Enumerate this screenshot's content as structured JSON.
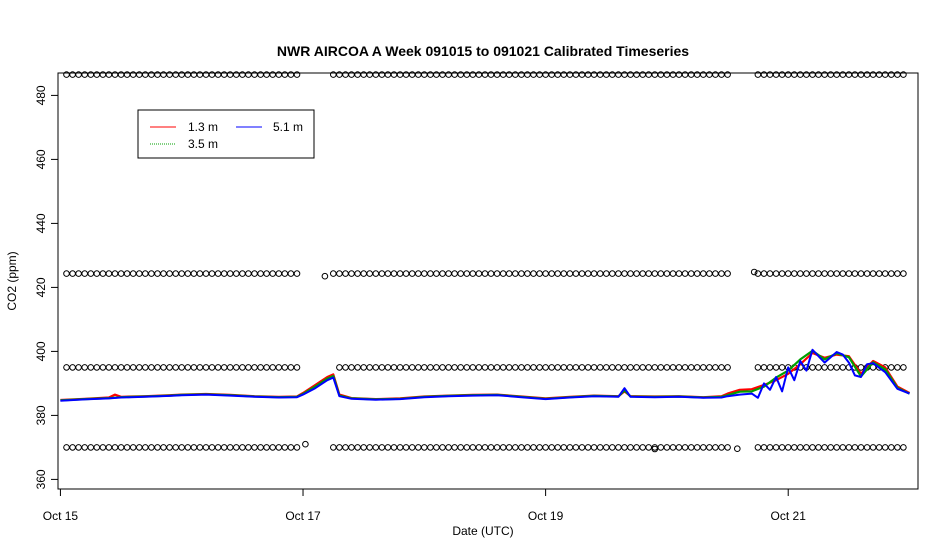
{
  "chart_data": {
    "type": "line",
    "title": "NWR AIRCOA A  Week 091015 to 091021  Calibrated Timeseries",
    "xlabel": "Date (UTC)",
    "ylabel": "CO2 (ppm)",
    "xlim": [
      -0.02,
      7.07
    ],
    "ylim": [
      357,
      487
    ],
    "x_ticks": [
      {
        "value": 0,
        "label": "Oct 15"
      },
      {
        "value": 2,
        "label": "Oct 17"
      },
      {
        "value": 4,
        "label": "Oct 19"
      },
      {
        "value": 6,
        "label": "Oct 21"
      }
    ],
    "y_ticks": [
      360,
      380,
      400,
      420,
      440,
      460,
      480
    ],
    "legend": {
      "position": "top-left",
      "entries": [
        {
          "label": "1.3 m",
          "color": "#ff0000"
        },
        {
          "label": "5.1 m",
          "color": "#0000ff"
        },
        {
          "label": "3.5 m",
          "color": "#00a000"
        }
      ]
    },
    "series": [
      {
        "name": "1.3 m",
        "color": "#ff0000",
        "x": [
          0.0,
          0.2,
          0.4,
          0.45,
          0.5,
          0.7,
          0.9,
          1.0,
          1.2,
          1.4,
          1.6,
          1.8,
          1.95,
          2.0,
          2.1,
          2.2,
          2.25,
          2.3,
          2.4,
          2.6,
          2.8,
          3.0,
          3.2,
          3.4,
          3.6,
          3.8,
          4.0,
          4.2,
          4.4,
          4.6,
          4.65,
          4.7,
          4.9,
          5.1,
          5.3,
          5.45,
          5.5,
          5.6,
          5.7,
          5.8,
          5.9,
          6.0,
          6.1,
          6.2,
          6.3,
          6.4,
          6.5,
          6.6,
          6.7,
          6.8,
          6.9,
          7.0
        ],
        "y": [
          384.8,
          385.2,
          385.6,
          386.5,
          385.8,
          386.0,
          386.3,
          386.5,
          386.7,
          386.4,
          386.0,
          385.8,
          385.9,
          387.0,
          389.5,
          392.0,
          392.8,
          386.5,
          385.4,
          385.1,
          385.3,
          385.9,
          386.2,
          386.4,
          386.5,
          385.9,
          385.3,
          385.8,
          386.2,
          386.0,
          387.5,
          386.0,
          385.9,
          386.0,
          385.7,
          386.0,
          386.8,
          388.0,
          388.2,
          389.5,
          391.0,
          393.0,
          396.0,
          399.5,
          398.0,
          399.0,
          398.5,
          393.0,
          397.0,
          395.0,
          389.0,
          387.0
        ]
      },
      {
        "name": "3.5 m",
        "color": "#00a000",
        "x": [
          0.0,
          0.2,
          0.4,
          0.5,
          0.7,
          0.9,
          1.0,
          1.2,
          1.4,
          1.6,
          1.8,
          1.95,
          2.0,
          2.1,
          2.2,
          2.25,
          2.3,
          2.4,
          2.6,
          2.8,
          3.0,
          3.2,
          3.4,
          3.6,
          3.8,
          4.0,
          4.2,
          4.4,
          4.6,
          4.65,
          4.7,
          4.9,
          5.1,
          5.3,
          5.45,
          5.5,
          5.6,
          5.7,
          5.8,
          5.9,
          6.0,
          6.1,
          6.2,
          6.3,
          6.4,
          6.5,
          6.6,
          6.7,
          6.8,
          6.9,
          7.0
        ],
        "y": [
          384.7,
          385.1,
          385.4,
          385.7,
          385.9,
          386.2,
          386.4,
          386.6,
          386.3,
          385.9,
          385.7,
          385.8,
          386.7,
          389.0,
          391.5,
          392.3,
          386.2,
          385.3,
          385.0,
          385.2,
          385.8,
          386.1,
          386.3,
          386.4,
          385.8,
          385.2,
          385.7,
          386.1,
          385.9,
          387.8,
          385.9,
          385.8,
          385.9,
          385.6,
          385.8,
          386.3,
          387.4,
          387.5,
          389.0,
          391.8,
          394.0,
          397.5,
          400.2,
          397.5,
          399.4,
          398.2,
          392.2,
          396.6,
          394.4,
          388.6,
          386.8
        ]
      },
      {
        "name": "5.1 m",
        "color": "#0000ff",
        "x": [
          0.0,
          0.2,
          0.4,
          0.5,
          0.7,
          0.9,
          1.0,
          1.2,
          1.4,
          1.6,
          1.8,
          1.95,
          2.0,
          2.1,
          2.2,
          2.25,
          2.3,
          2.4,
          2.6,
          2.8,
          3.0,
          3.2,
          3.4,
          3.6,
          3.8,
          4.0,
          4.2,
          4.4,
          4.6,
          4.65,
          4.7,
          4.9,
          5.1,
          5.3,
          5.45,
          5.5,
          5.6,
          5.7,
          5.75,
          5.8,
          5.85,
          5.9,
          5.95,
          6.0,
          6.05,
          6.1,
          6.15,
          6.2,
          6.25,
          6.3,
          6.4,
          6.45,
          6.5,
          6.55,
          6.6,
          6.65,
          6.7,
          6.8,
          6.9,
          7.0
        ],
        "y": [
          384.6,
          385.0,
          385.3,
          385.6,
          385.8,
          386.1,
          386.3,
          386.5,
          386.2,
          385.8,
          385.6,
          385.7,
          386.5,
          388.5,
          391.0,
          391.8,
          386.0,
          385.2,
          384.9,
          385.1,
          385.7,
          386.0,
          386.2,
          386.3,
          385.7,
          385.1,
          385.6,
          386.0,
          385.8,
          388.5,
          385.8,
          385.7,
          385.8,
          385.5,
          385.6,
          386.0,
          386.5,
          386.8,
          385.5,
          390.0,
          388.0,
          392.0,
          387.5,
          395.0,
          391.0,
          397.0,
          394.0,
          400.5,
          398.5,
          396.5,
          399.8,
          399.0,
          396.5,
          392.5,
          392.0,
          396.0,
          396.3,
          393.5,
          388.3,
          386.8
        ]
      }
    ],
    "indicator_rows": [
      {
        "name": "indicator-row-486",
        "y": 486.5,
        "gaps": [
          [
            1.98,
            2.2
          ],
          [
            5.53,
            5.72
          ]
        ]
      },
      {
        "name": "indicator-row-424",
        "y": 424.3,
        "gaps": [
          [
            1.98,
            2.2
          ],
          [
            5.53,
            5.72
          ]
        ],
        "extra_points": [
          [
            2.18,
            423.5
          ],
          [
            5.72,
            424.8
          ]
        ]
      },
      {
        "name": "indicator-row-395",
        "y": 395.0,
        "gaps": [
          [
            1.98,
            2.26
          ],
          [
            5.53,
            5.75
          ]
        ]
      },
      {
        "name": "indicator-row-370",
        "y": 370.0,
        "gaps": [
          [
            1.98,
            2.2
          ],
          [
            5.53,
            5.72
          ]
        ],
        "extra_points": [
          [
            2.02,
            371.0
          ],
          [
            4.9,
            369.5
          ],
          [
            5.58,
            369.6
          ]
        ]
      }
    ]
  }
}
